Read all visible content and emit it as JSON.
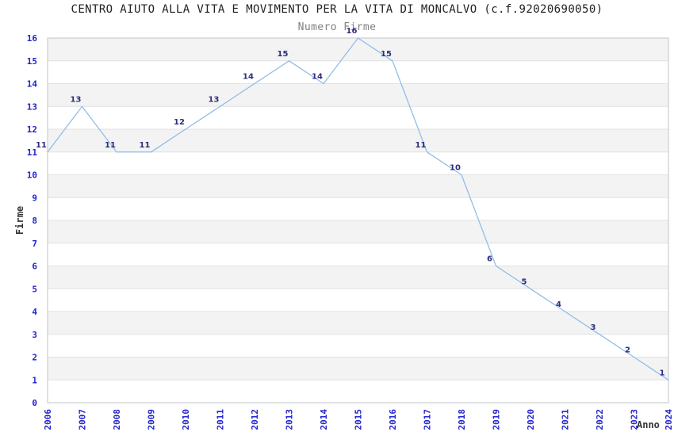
{
  "header": {
    "title": "CENTRO AIUTO ALLA VITA E MOVIMENTO PER LA VITA DI MONCALVO (c.f.92020690050)",
    "subtitle": "Numero Firme"
  },
  "chart_data": {
    "type": "line",
    "title": "CENTRO AIUTO ALLA VITA E MOVIMENTO PER LA VITA DI MONCALVO (c.f.92020690050)",
    "subtitle": "Numero Firme",
    "xlabel": "Anno",
    "ylabel": "Firme",
    "x": [
      2006,
      2007,
      2008,
      2009,
      2010,
      2011,
      2012,
      2013,
      2014,
      2015,
      2016,
      2017,
      2018,
      2019,
      2020,
      2021,
      2022,
      2023,
      2024
    ],
    "values": [
      11,
      13,
      11,
      11,
      12,
      13,
      14,
      15,
      14,
      16,
      15,
      11,
      10,
      6,
      5,
      4,
      3,
      2,
      1
    ],
    "ylim": [
      0,
      16
    ],
    "ytick_step": 1,
    "point_labels_visible": true,
    "legend": "none",
    "grid": "horizontal-bands-alternating",
    "colors": {
      "line": "#8fbce8",
      "point_label": "#2d2d7d",
      "tick_label": "#2323cc",
      "axis_title": "#333333",
      "band_fill": "#f3f3f3",
      "grid_line": "#e2e2e2",
      "plot_border": "#c9ced3",
      "title_text": "#222222",
      "subtitle_text": "#808080",
      "background": "#ffffff"
    }
  }
}
